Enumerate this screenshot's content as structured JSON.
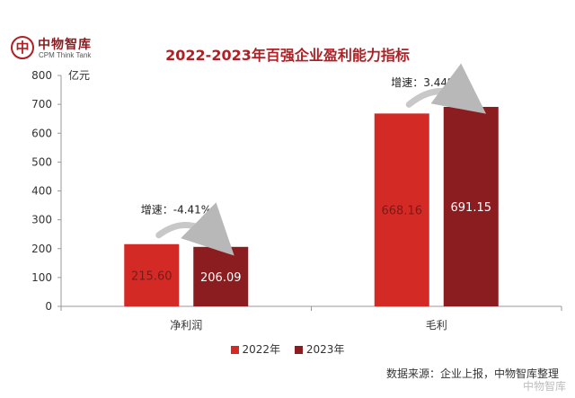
{
  "logo": {
    "name_cn": "中物智库",
    "name_en": "CPM Think Tank"
  },
  "chart_data": {
    "type": "bar",
    "title": "2022-2023年百强企业盈利能力指标",
    "ylabel": "亿元",
    "ylim": [
      0,
      800
    ],
    "yticks": [
      0,
      100,
      200,
      300,
      400,
      500,
      600,
      700,
      800
    ],
    "categories": [
      "净利润",
      "毛利"
    ],
    "series": [
      {
        "name": "2022年",
        "color": "#d42a26",
        "values": [
          215.6,
          668.16
        ],
        "labels": [
          "215.60",
          "668.16"
        ]
      },
      {
        "name": "2023年",
        "color": "#8b1c1f",
        "values": [
          206.09,
          691.15
        ],
        "labels": [
          "206.09",
          "691.15"
        ]
      }
    ],
    "annotations": [
      {
        "category": "净利润",
        "text": "增速：-4.41%"
      },
      {
        "category": "毛利",
        "text": "增速：3.44%"
      }
    ],
    "legend_position": "bottom",
    "grid": false
  },
  "source_text": "数据来源：企业上报，中物智库整理",
  "watermark_text": "中物智库"
}
